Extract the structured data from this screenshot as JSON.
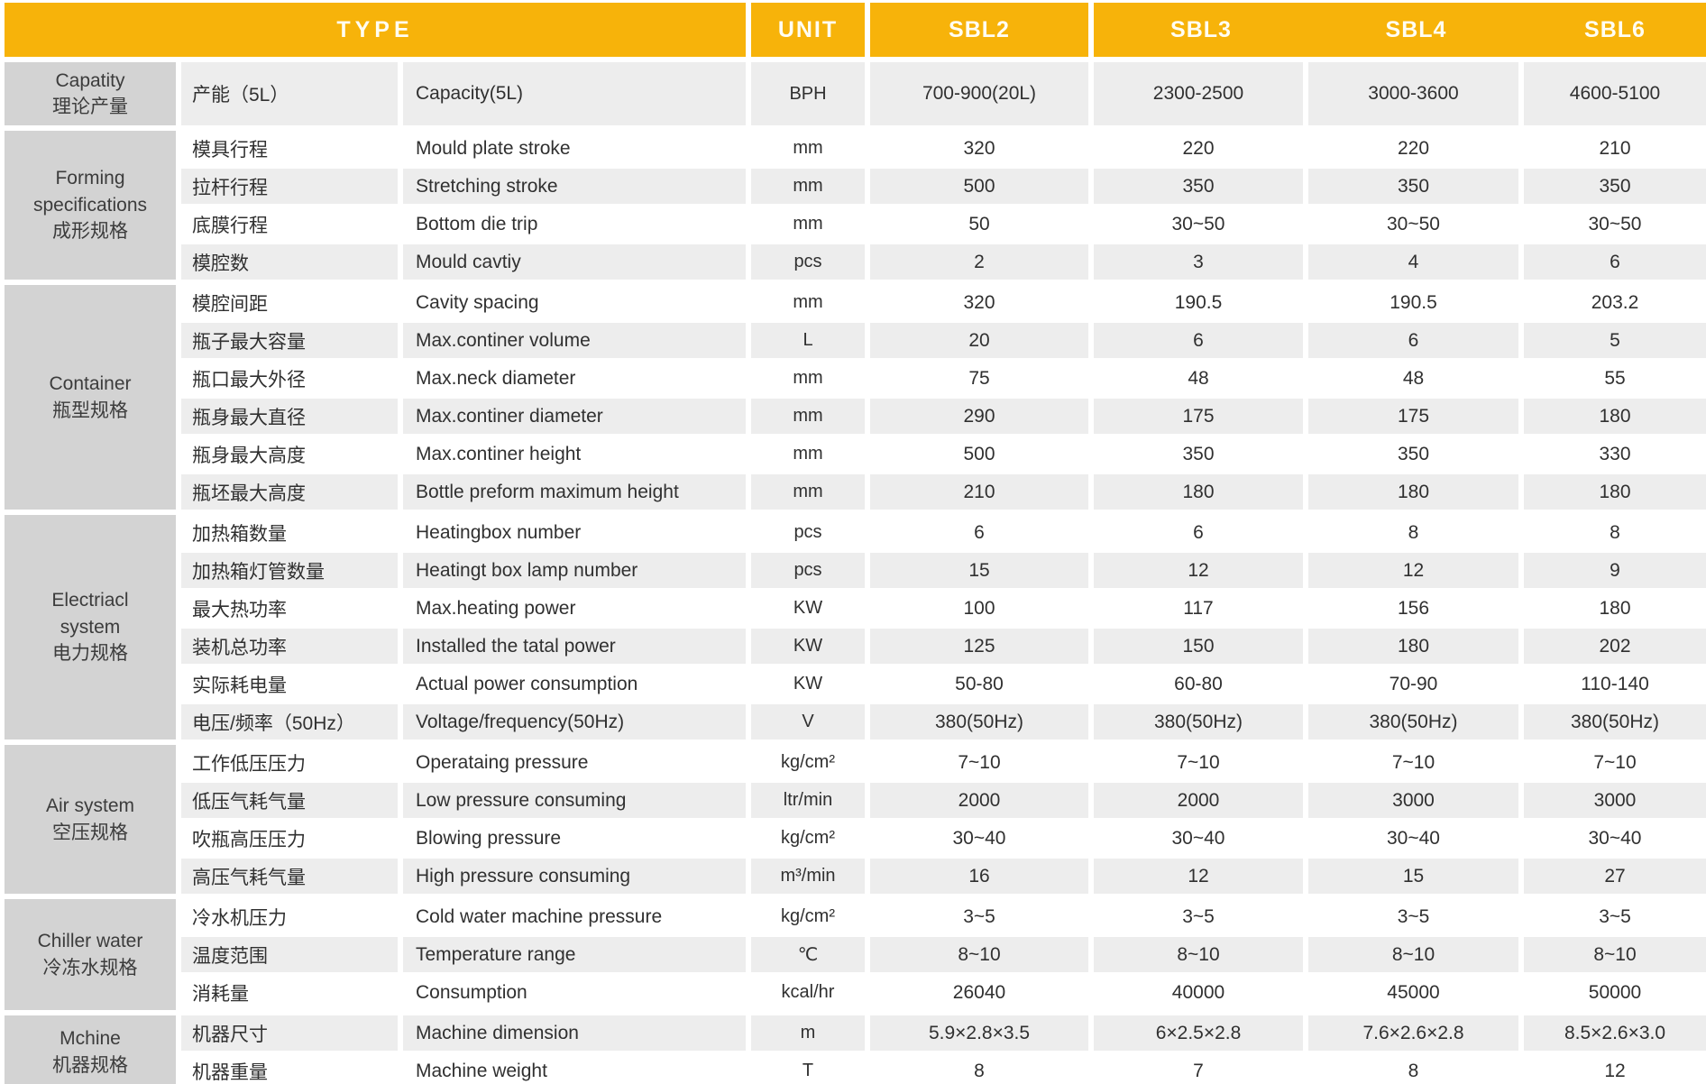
{
  "colors": {
    "orange": "#F7B30A",
    "stripe_gray": "#EDEDED",
    "stripe_white": "#FFFFFF",
    "group_gray": "#D3D3D3",
    "text": "#303030"
  },
  "header": {
    "type_label": "TYPE",
    "unit_label": "UNIT",
    "models": [
      "SBL2",
      "SBL3",
      "SBL4",
      "SBL6"
    ]
  },
  "groups": [
    {
      "label_lines": [
        "Capatity",
        "理论产量"
      ],
      "rows": [
        {
          "cn": "产能（5L）",
          "en": "Capacity(5L)",
          "unit": "BPH",
          "tall": true,
          "values": [
            "700-900(20L)",
            "2300-2500",
            "3000-3600",
            "4600-5100"
          ]
        }
      ]
    },
    {
      "label_lines": [
        "Forming",
        "specifications",
        "成形规格"
      ],
      "rows": [
        {
          "cn": "模具行程",
          "en": "Mould plate stroke",
          "unit": "mm",
          "values": [
            "320",
            "220",
            "220",
            "210"
          ]
        },
        {
          "cn": "拉杆行程",
          "en": "Stretching stroke",
          "unit": "mm",
          "values": [
            "500",
            "350",
            "350",
            "350"
          ]
        },
        {
          "cn": "底膜行程",
          "en": "Bottom die trip",
          "unit": "mm",
          "values": [
            "50",
            "30~50",
            "30~50",
            "30~50"
          ]
        },
        {
          "cn": "模腔数",
          "en": "Mould cavtiy",
          "unit": "pcs",
          "values": [
            "2",
            "3",
            "4",
            "6"
          ]
        }
      ]
    },
    {
      "label_lines": [
        "Container",
        "瓶型规格"
      ],
      "rows": [
        {
          "cn": "模腔间距",
          "en": "Cavity spacing",
          "unit": "mm",
          "values": [
            "320",
            "190.5",
            "190.5",
            "203.2"
          ]
        },
        {
          "cn": "瓶子最大容量",
          "en": "Max.continer volume",
          "unit": "L",
          "values": [
            "20",
            "6",
            "6",
            "5"
          ]
        },
        {
          "cn": "瓶口最大外径",
          "en": "Max.neck diameter",
          "unit": "mm",
          "values": [
            "75",
            "48",
            "48",
            "55"
          ]
        },
        {
          "cn": "瓶身最大直径",
          "en": "Max.continer diameter",
          "unit": "mm",
          "values": [
            "290",
            "175",
            "175",
            "180"
          ]
        },
        {
          "cn": "瓶身最大高度",
          "en": "Max.continer height",
          "unit": "mm",
          "values": [
            "500",
            "350",
            "350",
            "330"
          ]
        },
        {
          "cn": "瓶坯最大高度",
          "en": "Bottle preform maximum height",
          "unit": "mm",
          "values": [
            "210",
            "180",
            "180",
            "180"
          ]
        }
      ]
    },
    {
      "label_lines": [
        "Electriacl",
        "system",
        "电力规格"
      ],
      "rows": [
        {
          "cn": "加热箱数量",
          "en": "Heatingbox number",
          "unit": "pcs",
          "values": [
            "6",
            "6",
            "8",
            "8"
          ]
        },
        {
          "cn": "加热箱灯管数量",
          "en": "Heatingt box lamp number",
          "unit": "pcs",
          "values": [
            "15",
            "12",
            "12",
            "9"
          ]
        },
        {
          "cn": "最大热功率",
          "en": "Max.heating power",
          "unit": "KW",
          "values": [
            "100",
            "117",
            "156",
            "180"
          ]
        },
        {
          "cn": "装机总功率",
          "en": "Installed the tatal power",
          "unit": "KW",
          "values": [
            "125",
            "150",
            "180",
            "202"
          ]
        },
        {
          "cn": "实际耗电量",
          "en": "Actual power consumption",
          "unit": "KW",
          "values": [
            "50-80",
            "60-80",
            "70-90",
            "110-140"
          ]
        },
        {
          "cn": "电压/频率（50Hz）",
          "en": "Voltage/frequency(50Hz)",
          "unit": "V",
          "values": [
            "380(50Hz)",
            "380(50Hz)",
            "380(50Hz)",
            "380(50Hz)"
          ]
        }
      ]
    },
    {
      "label_lines": [
        "Air system",
        "空压规格"
      ],
      "rows": [
        {
          "cn": "工作低压压力",
          "en": "Operataing pressure",
          "unit": "kg/cm²",
          "values": [
            "7~10",
            "7~10",
            "7~10",
            "7~10"
          ]
        },
        {
          "cn": "低压气耗气量",
          "en": "Low pressure consuming",
          "unit": "ltr/min",
          "values": [
            "2000",
            "2000",
            "3000",
            "3000"
          ]
        },
        {
          "cn": "吹瓶高压压力",
          "en": "Blowing pressure",
          "unit": "kg/cm²",
          "values": [
            "30~40",
            "30~40",
            "30~40",
            "30~40"
          ]
        },
        {
          "cn": "高压气耗气量",
          "en": "High pressure consuming",
          "unit": "m³/min",
          "values": [
            "16",
            "12",
            "15",
            "27"
          ]
        }
      ]
    },
    {
      "label_lines": [
        "Chiller water",
        "冷冻水规格"
      ],
      "rows": [
        {
          "cn": "冷水机压力",
          "en": "Cold water machine pressure",
          "unit": "kg/cm²",
          "values": [
            "3~5",
            "3~5",
            "3~5",
            "3~5"
          ]
        },
        {
          "cn": "温度范围",
          "en": "Temperature range",
          "unit": "℃",
          "values": [
            "8~10",
            "8~10",
            "8~10",
            "8~10"
          ]
        },
        {
          "cn": "消耗量",
          "en": "Consumption",
          "unit": "kcal/hr",
          "values": [
            "26040",
            "40000",
            "45000",
            "50000"
          ]
        }
      ]
    },
    {
      "label_lines": [
        "Mchine",
        "机器规格"
      ],
      "rows": [
        {
          "cn": "机器尺寸",
          "en": "Machine dimension",
          "unit": "m",
          "values": [
            "5.9×2.8×3.5",
            "6×2.5×2.8",
            "7.6×2.6×2.8",
            "8.5×2.6×3.0"
          ]
        },
        {
          "cn": "机器重量",
          "en": "Machine weight",
          "unit": "T",
          "values": [
            "8",
            "7",
            "8",
            "12"
          ]
        }
      ]
    }
  ]
}
